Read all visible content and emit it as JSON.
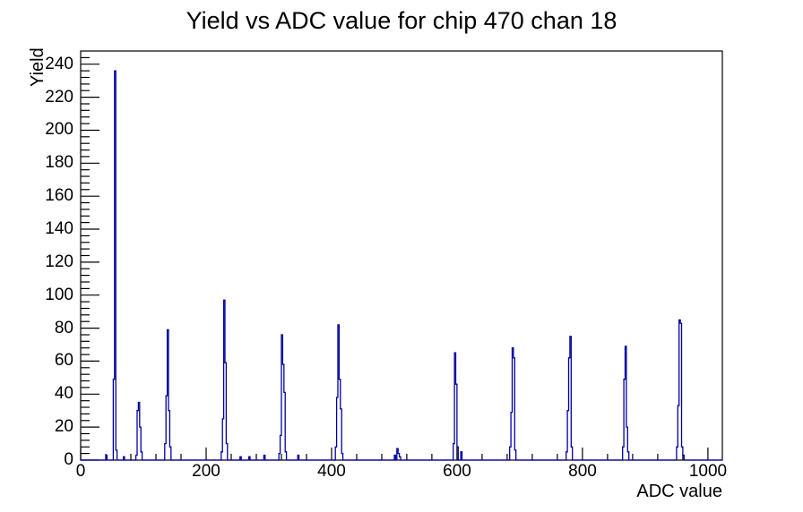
{
  "chart_data": {
    "type": "bar",
    "title": "Yield vs ADC value for chip 470 chan 18",
    "xlabel": "ADC value",
    "ylabel": "Yield",
    "xlim": [
      0,
      1023
    ],
    "ylim": [
      0,
      248
    ],
    "x_tick_values": [
      0,
      200,
      400,
      600,
      800,
      1000
    ],
    "x_tick_labels": [
      "0",
      "200",
      "400",
      "600",
      "800",
      "1000"
    ],
    "x_minor_step": 40,
    "y_tick_values": [
      0,
      20,
      40,
      60,
      80,
      100,
      120,
      140,
      160,
      180,
      200,
      220,
      240
    ],
    "y_tick_labels": [
      "0",
      "20",
      "40",
      "60",
      "80",
      "100",
      "120",
      "140",
      "160",
      "180",
      "200",
      "220",
      "240"
    ],
    "y_minor_step": 4,
    "grid": false,
    "legend": "none",
    "line_color": "#0000a0",
    "axis_color": "#000000",
    "background": "#ffffff",
    "bin_width": 2,
    "bins": [
      [
        40,
        3
      ],
      [
        52,
        49
      ],
      [
        54,
        236
      ],
      [
        56,
        6
      ],
      [
        68,
        2
      ],
      [
        88,
        3
      ],
      [
        90,
        30
      ],
      [
        92,
        35
      ],
      [
        94,
        20
      ],
      [
        96,
        5
      ],
      [
        134,
        10
      ],
      [
        136,
        39
      ],
      [
        138,
        79
      ],
      [
        140,
        30
      ],
      [
        142,
        8
      ],
      [
        224,
        5
      ],
      [
        226,
        25
      ],
      [
        228,
        97
      ],
      [
        230,
        59
      ],
      [
        232,
        10
      ],
      [
        254,
        2
      ],
      [
        268,
        2
      ],
      [
        292,
        3
      ],
      [
        316,
        4
      ],
      [
        318,
        15
      ],
      [
        320,
        76
      ],
      [
        322,
        58
      ],
      [
        324,
        41
      ],
      [
        326,
        5
      ],
      [
        346,
        3
      ],
      [
        406,
        8
      ],
      [
        408,
        38
      ],
      [
        410,
        82
      ],
      [
        412,
        49
      ],
      [
        414,
        31
      ],
      [
        416,
        4
      ],
      [
        500,
        3
      ],
      [
        504,
        7
      ],
      [
        506,
        4
      ],
      [
        508,
        2
      ],
      [
        594,
        10
      ],
      [
        596,
        65
      ],
      [
        598,
        46
      ],
      [
        600,
        8
      ],
      [
        606,
        5
      ],
      [
        684,
        8
      ],
      [
        686,
        29
      ],
      [
        688,
        68
      ],
      [
        690,
        62
      ],
      [
        692,
        6
      ],
      [
        774,
        5
      ],
      [
        776,
        30
      ],
      [
        778,
        62
      ],
      [
        780,
        75
      ],
      [
        782,
        8
      ],
      [
        864,
        8
      ],
      [
        866,
        49
      ],
      [
        868,
        69
      ],
      [
        870,
        20
      ],
      [
        872,
        5
      ],
      [
        950,
        8
      ],
      [
        952,
        33
      ],
      [
        954,
        85
      ],
      [
        956,
        83
      ],
      [
        958,
        8
      ],
      [
        960,
        3
      ]
    ]
  }
}
